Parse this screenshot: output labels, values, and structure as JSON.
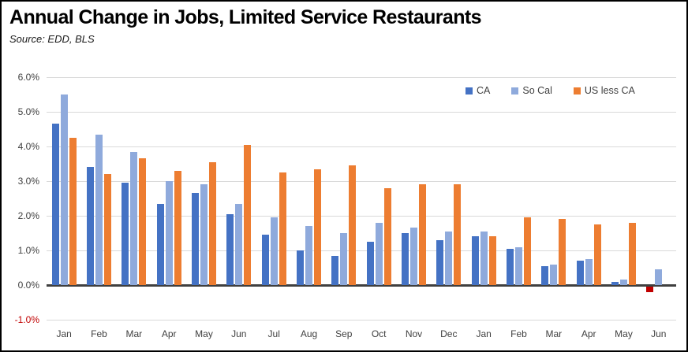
{
  "title": "Annual Change in Jobs, Limited Service Restaurants",
  "source": "Source:  EDD, BLS",
  "chart_data": {
    "type": "bar",
    "title": "Annual Change in Jobs, Limited Service Restaurants",
    "subtitle": "Source:  EDD, BLS",
    "categories": [
      "Jan",
      "Feb",
      "Mar",
      "Apr",
      "May",
      "Jun",
      "Jul",
      "Aug",
      "Sep",
      "Oct",
      "Nov",
      "Dec",
      "Jan",
      "Feb",
      "Mar",
      "Apr",
      "May",
      "Jun"
    ],
    "series": [
      {
        "name": "CA",
        "color": "#4472C4",
        "negative_color": "#C00000",
        "values": [
          4.65,
          3.4,
          2.95,
          2.35,
          2.65,
          2.05,
          1.45,
          1.0,
          0.85,
          1.25,
          1.5,
          1.3,
          1.4,
          1.05,
          0.55,
          0.7,
          0.1,
          -0.15
        ]
      },
      {
        "name": "So Cal",
        "color": "#8FAADC",
        "values": [
          5.5,
          4.35,
          3.85,
          3.0,
          2.9,
          2.35,
          1.95,
          1.7,
          1.5,
          1.8,
          1.65,
          1.55,
          1.55,
          1.1,
          0.6,
          0.75,
          0.15,
          0.45
        ]
      },
      {
        "name": "US less CA",
        "color": "#ED7D31",
        "values": [
          4.25,
          3.2,
          3.65,
          3.3,
          3.55,
          4.05,
          3.25,
          3.35,
          3.45,
          2.8,
          2.9,
          2.9,
          1.4,
          1.95,
          1.9,
          1.75,
          1.8,
          null
        ]
      }
    ],
    "xlabel": "",
    "ylabel": "",
    "ylim": [
      -1,
      6
    ],
    "grid": true,
    "legend_position": "top-right",
    "y_ticks": [
      {
        "label": "6.0%",
        "value": 6
      },
      {
        "label": "5.0%",
        "value": 5
      },
      {
        "label": "4.0%",
        "value": 4
      },
      {
        "label": "3.0%",
        "value": 3
      },
      {
        "label": "2.0%",
        "value": 2
      },
      {
        "label": "1.0%",
        "value": 1
      },
      {
        "label": "0.0%",
        "value": 0
      },
      {
        "label": "-1.0%",
        "value": -1,
        "color": "#C00000"
      }
    ],
    "tick_color": "#404040",
    "gridline_color": "#D9D9D9",
    "axis_line_color": "#3F3F3F"
  }
}
